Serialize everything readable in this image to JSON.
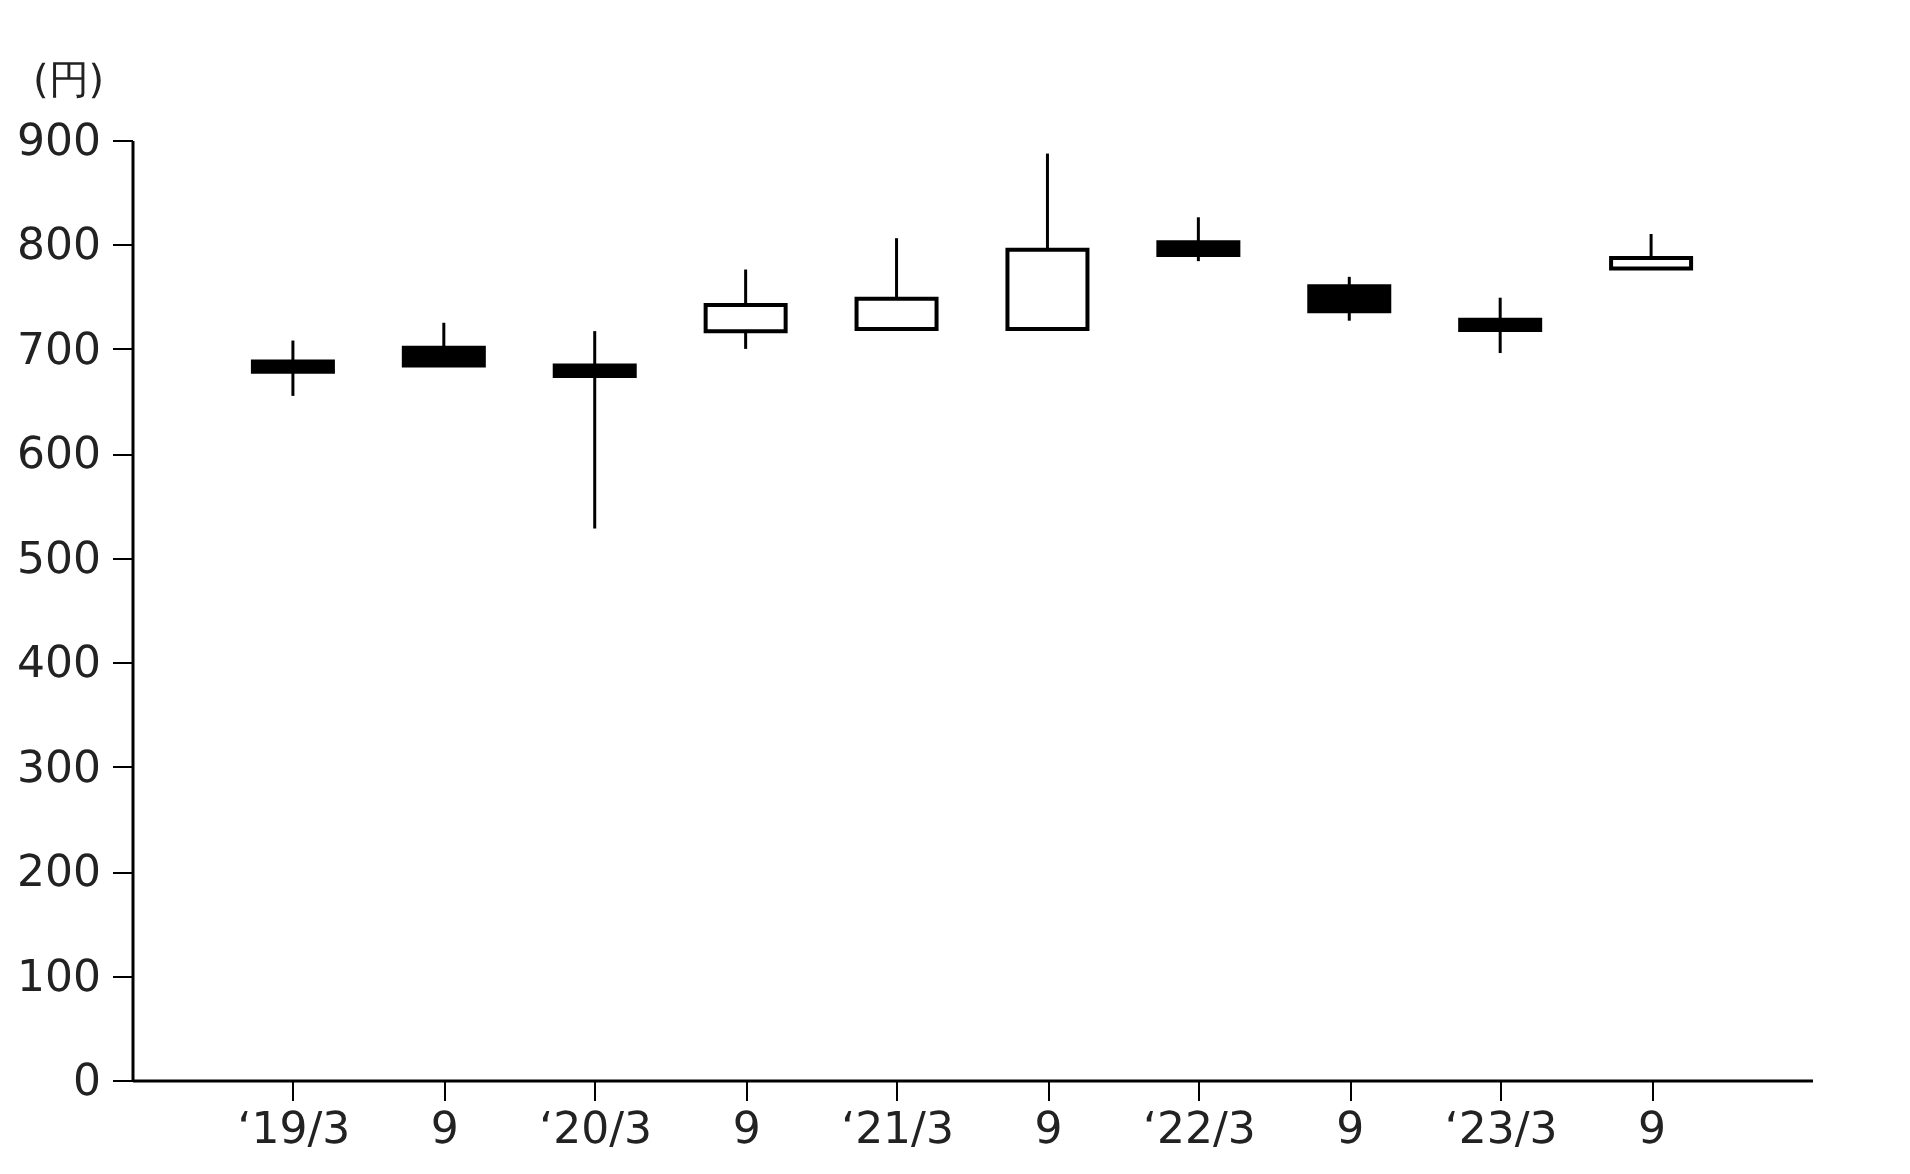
{
  "chart_data": {
    "type": "candlestick",
    "ylabel": "(円)",
    "categories": [
      "‘19/3",
      "9",
      "‘20/3",
      "9",
      "‘21/3",
      "9",
      "‘22/3",
      "9",
      "‘23/3",
      "9"
    ],
    "ohlc": [
      [
        688,
        708,
        655,
        678
      ],
      [
        701,
        725,
        684,
        684
      ],
      [
        684,
        717,
        528,
        674
      ],
      [
        717,
        776,
        700,
        742
      ],
      [
        719,
        806,
        719,
        748
      ],
      [
        719,
        887,
        718,
        795
      ],
      [
        802,
        826,
        784,
        790
      ],
      [
        760,
        769,
        727,
        736
      ],
      [
        728,
        749,
        696,
        718
      ],
      [
        777,
        810,
        777,
        787
      ]
    ],
    "ylim": [
      0,
      900
    ],
    "yticks": [
      0,
      100,
      200,
      300,
      400,
      500,
      600,
      700,
      800,
      900
    ]
  }
}
